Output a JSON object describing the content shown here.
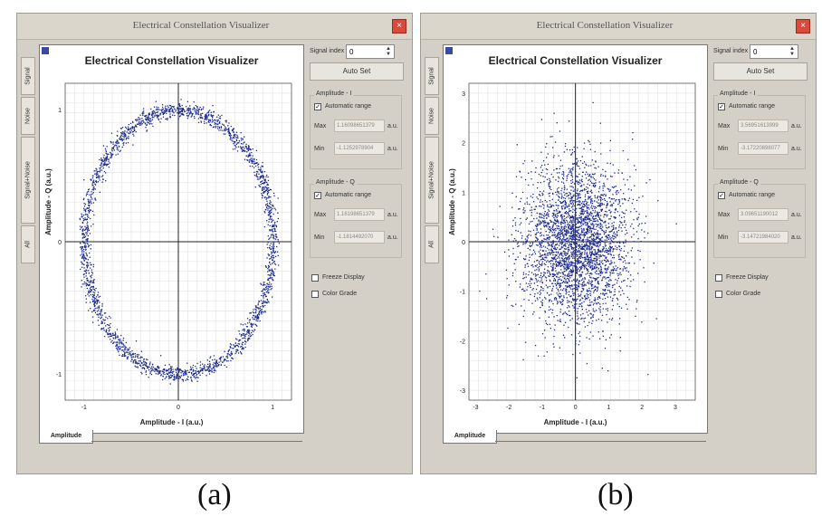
{
  "windows": [
    {
      "title": "Electrical Constellation Visualizer",
      "plot_title": "Electrical Constellation Visualizer",
      "tabs": [
        "Signal",
        "Noise",
        "Signal+Noise",
        "All"
      ],
      "xlabel": "Amplitude - I (a.u.)",
      "ylabel": "Amplitude - Q (a.u.)",
      "bottom_tab": "Amplitude",
      "symbol_index_label": "Signal index",
      "symbol_index_value": "0",
      "autoset_label": "Auto Set",
      "group_i_label": "Amplitude - I",
      "group_q_label": "Amplitude - Q",
      "auto_range_label": "Automatic range",
      "max_label": "Max",
      "min_label": "Min",
      "unit": "a.u.",
      "i_max": "1.16098651379",
      "i_min": "-1.1252978904",
      "q_max": "1.16198651379",
      "q_min": "-1.1814492070",
      "freeze_label": "Freeze Display",
      "grade_label": "Color Grade",
      "caption": "(a)"
    },
    {
      "title": "Electrical Constellation Visualizer",
      "plot_title": "Electrical Constellation Visualizer",
      "tabs": [
        "Signal",
        "Noise",
        "Signal+Noise",
        "All"
      ],
      "xlabel": "Amplitude - I (a.u.)",
      "ylabel": "Amplitude - Q (a.u.)",
      "bottom_tab": "Amplitude",
      "symbol_index_label": "Signal index",
      "symbol_index_value": "0",
      "autoset_label": "Auto Set",
      "group_i_label": "Amplitude - I",
      "group_q_label": "Amplitude - Q",
      "auto_range_label": "Automatic range",
      "max_label": "Max",
      "min_label": "Min",
      "unit": "a.u.",
      "i_max": "3.56951613999",
      "i_min": "-3.17220898077",
      "q_max": "3.09651190012",
      "q_min": "-3.14721984020",
      "freeze_label": "Freeze Display",
      "grade_label": "Color Grade",
      "caption": "(b)"
    }
  ],
  "chart_data": [
    {
      "type": "scatter",
      "shape": "ring",
      "xlabel": "Amplitude - I (a.u.)",
      "ylabel": "Amplitude - Q (a.u.)",
      "xlim": [
        -1.2,
        1.2
      ],
      "ylim": [
        -1.2,
        1.2
      ],
      "xticks": [
        "-1",
        "0",
        "1"
      ],
      "yticks": [
        "1",
        "0",
        "-1"
      ],
      "radius": 1.0,
      "spread": 0.03,
      "points": 2400,
      "color": "#1c2a8c",
      "grid": true
    },
    {
      "type": "scatter",
      "shape": "gaussian-cloud",
      "xlabel": "Amplitude - I (a.u.)",
      "ylabel": "Amplitude - Q (a.u.)",
      "xlim": [
        -3.2,
        3.6
      ],
      "ylim": [
        -3.2,
        3.2
      ],
      "xticks": [
        "-3",
        "-2",
        "-1",
        "0",
        "1",
        "2",
        "3"
      ],
      "yticks": [
        "3",
        "2",
        "1",
        "0",
        "-1",
        "-2",
        "-3"
      ],
      "sigma": 0.8,
      "points": 3200,
      "color": "#1c2a8c",
      "grid": true
    }
  ]
}
